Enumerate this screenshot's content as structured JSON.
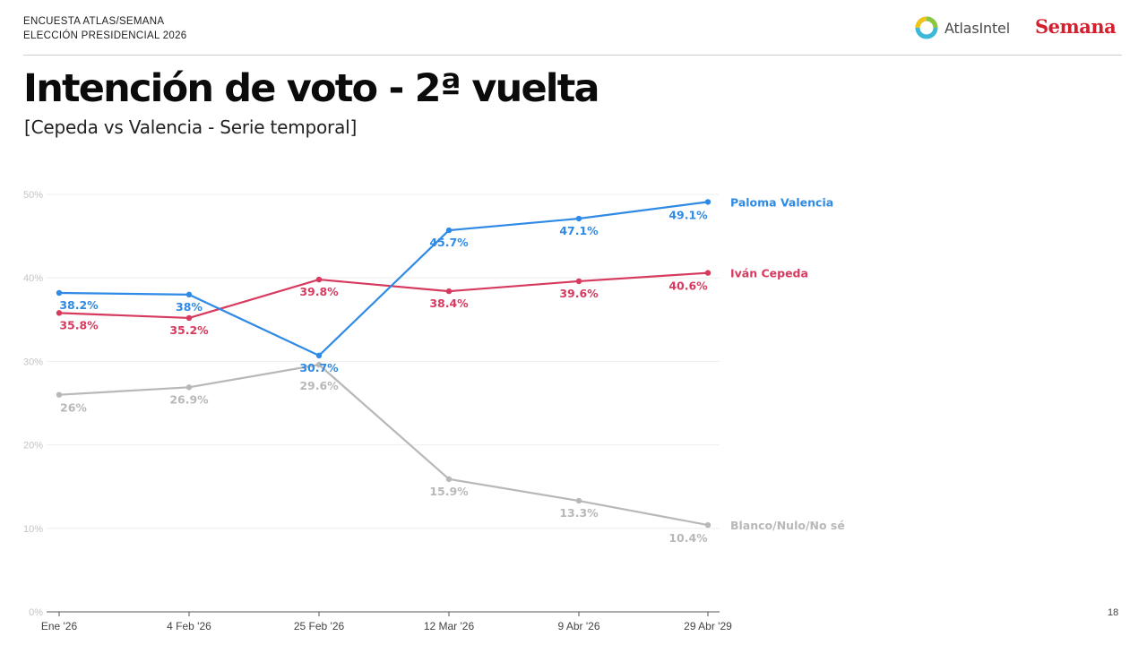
{
  "header": {
    "line1": "ENCUESTA ATLAS/SEMANA",
    "line2": "ELECCIÓN PRESIDENCIAL 2026",
    "atlas_logo_text": "AtlasIntel",
    "semana_logo_text": "Semana"
  },
  "title": "Intención de voto - 2ª vuelta",
  "subtitle": "[Cepeda vs Valencia - Serie temporal]",
  "page_number": "18",
  "colors": {
    "valencia": "#2f8ae6",
    "cepeda": "#d63a5e",
    "blanco": "#b8b8b8",
    "semana_red": "#d2202f"
  },
  "chart_data": {
    "type": "line",
    "title": "",
    "xlabel": "",
    "ylabel": "",
    "categories": [
      "Ene '26",
      "4 Feb '26",
      "25 Feb '26",
      "12 Mar '26",
      "9 Abr '26",
      "29 Abr '29"
    ],
    "ylim": [
      0,
      50
    ],
    "yticks": [
      0,
      10,
      20,
      30,
      40,
      50
    ],
    "ytick_labels": [
      "0%",
      "10%",
      "20%",
      "30%",
      "40%",
      "50%"
    ],
    "grid": true,
    "legend": "inline labels at right end of each line",
    "series": [
      {
        "name": "Paloma Valencia",
        "color": "#2f8ae6",
        "values": [
          38.2,
          38,
          30.7,
          45.7,
          47.1,
          49.1
        ],
        "labels": [
          "38.2%",
          "38%",
          "30.7%",
          "45.7%",
          "47.1%",
          "49.1%"
        ]
      },
      {
        "name": "Iván Cepeda",
        "color": "#d63a5e",
        "values": [
          35.8,
          35.2,
          39.8,
          38.4,
          39.6,
          40.6
        ],
        "labels": [
          "35.8%",
          "35.2%",
          "39.8%",
          "38.4%",
          "39.6%",
          "40.6%"
        ]
      },
      {
        "name": "Blanco/Nulo/No sé",
        "color": "#b8b8b8",
        "values": [
          26,
          26.9,
          29.6,
          15.9,
          13.3,
          10.4
        ],
        "labels": [
          "26%",
          "26.9%",
          "29.6%",
          "15.9%",
          "13.3%",
          "10.4%"
        ]
      }
    ]
  }
}
